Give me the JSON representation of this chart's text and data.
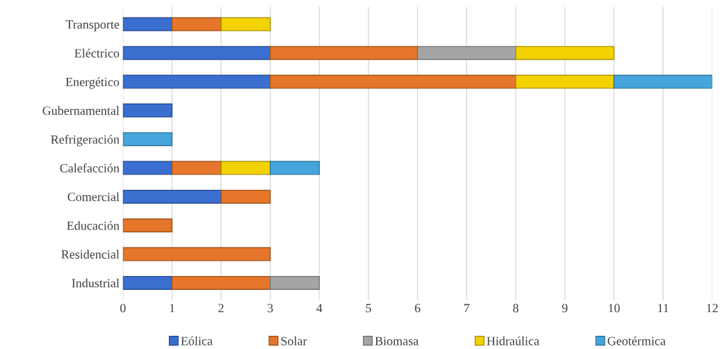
{
  "chart_data": {
    "type": "bar",
    "orientation": "horizontal",
    "stacked": true,
    "categories": [
      "Transporte",
      "Eléctrico",
      "Energético",
      "Gubernamental",
      "Refrigeración",
      "Calefacción",
      "Comercial",
      "Educación",
      "Residencial",
      "Industrial"
    ],
    "series": [
      {
        "name": "Eólica",
        "color": "#3a6fd0",
        "values": [
          1,
          3,
          3,
          1,
          null,
          1,
          2,
          null,
          null,
          1
        ]
      },
      {
        "name": "Solar",
        "color": "#e5762a",
        "values": [
          1,
          3,
          5,
          null,
          null,
          1,
          1,
          1,
          3,
          2
        ]
      },
      {
        "name": "Biomasa",
        "color": "#a5a5a5",
        "values": [
          null,
          2,
          null,
          null,
          null,
          null,
          null,
          null,
          null,
          1
        ]
      },
      {
        "name": "Hidraúlica",
        "color": "#f2d200",
        "values": [
          1,
          2,
          2,
          null,
          null,
          1,
          null,
          null,
          null,
          null
        ]
      },
      {
        "name": "Geotérmica",
        "color": "#45a5dc",
        "values": [
          null,
          null,
          2,
          null,
          1,
          1,
          null,
          null,
          null,
          null
        ]
      }
    ],
    "xlim": [
      0,
      12
    ],
    "xticks": [
      0,
      1,
      2,
      3,
      4,
      5,
      6,
      7,
      8,
      9,
      10,
      11,
      12
    ],
    "grid": "x",
    "legend": "bottom"
  }
}
